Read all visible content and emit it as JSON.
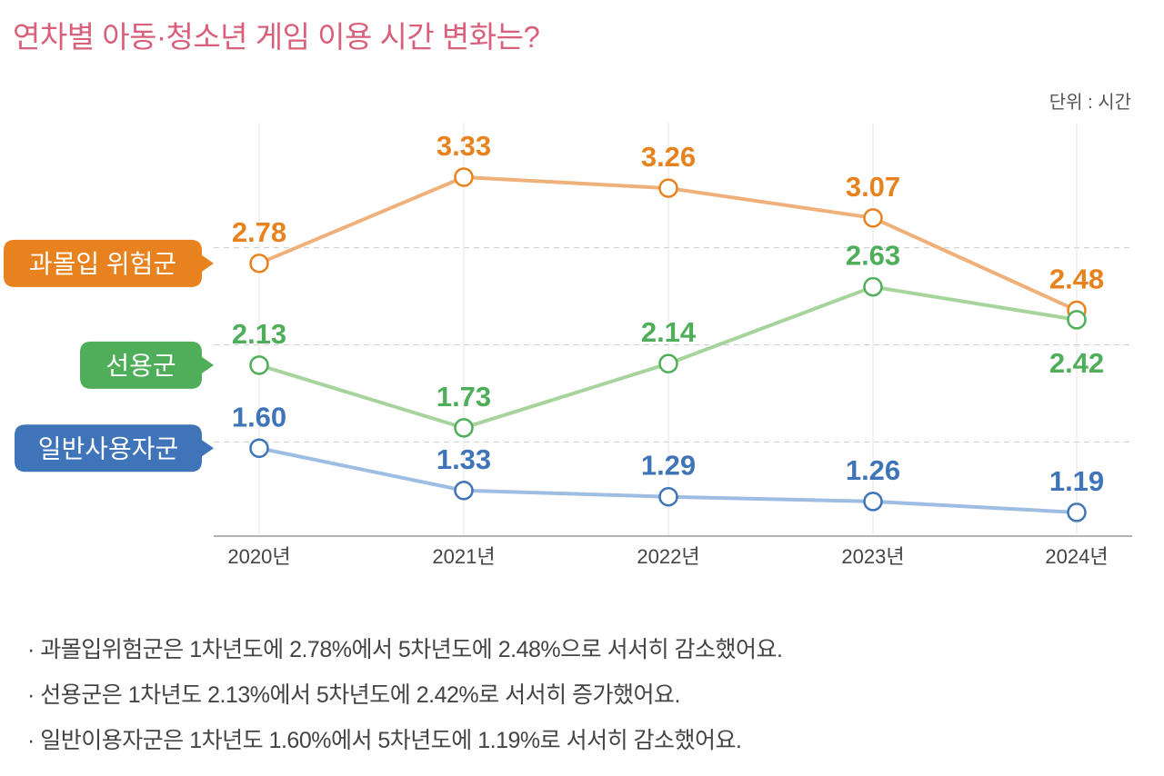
{
  "title": "연차별 아동·청소년 게임 이용 시간 변화는?",
  "unit_label": "단위 : 시간",
  "chart_data": {
    "type": "line",
    "title": "연차별 아동·청소년 게임 이용 시간 변화는?",
    "xlabel": "",
    "ylabel": "단위 : 시간",
    "categories": [
      "2020년",
      "2021년",
      "2022년",
      "2023년",
      "2024년"
    ],
    "ylim": [
      1.04,
      3.6
    ],
    "grid": true,
    "series": [
      {
        "name": "과몰입 위험군",
        "color": "#e8821e",
        "line_color": "#f0b07a",
        "values": [
          2.78,
          3.33,
          3.26,
          3.07,
          2.48
        ]
      },
      {
        "name": "선용군",
        "color": "#4fae5a",
        "line_color": "#a6d49c",
        "values": [
          2.13,
          1.73,
          2.14,
          2.63,
          2.42
        ]
      },
      {
        "name": "일반사용자군",
        "color": "#3f74b8",
        "line_color": "#9dbde3",
        "values": [
          1.6,
          1.33,
          1.29,
          1.26,
          1.19
        ]
      }
    ],
    "labels": [
      [
        "2.78",
        "3.33",
        "3.26",
        "3.07",
        "2.48"
      ],
      [
        "2.13",
        "1.73",
        "2.14",
        "2.63",
        "2.42"
      ],
      [
        "1.60",
        "1.33",
        "1.29",
        "1.26",
        "1.19"
      ]
    ]
  },
  "notes": [
    "· 과몰입위험군은 1차년도에 2.78%에서 5차년도에 2.48%으로 서서히 감소했어요.",
    "· 선용군은 1차년도 2.13%에서 5차년도에 2.42%로 서서히 증가했어요.",
    "· 일반이용자군은 1차년도 1.60%에서 5차년도에 1.19%로 서서히 감소했어요."
  ]
}
